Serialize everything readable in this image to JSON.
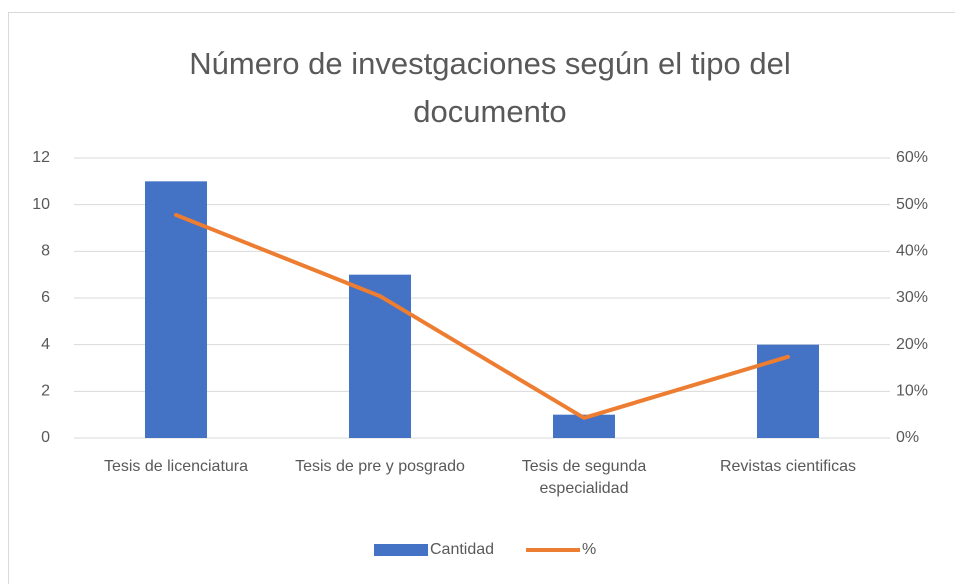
{
  "chart_data": {
    "type": "bar",
    "title": "Número de investgaciones según el tipo del documento",
    "categories": [
      "Tesis de licenciatura",
      "Tesis de pre y posgrado",
      "Tesis de segunda especialidad",
      "Revistas cientificas"
    ],
    "series": [
      {
        "name": "Cantidad",
        "type": "bar",
        "color": "#4472c4",
        "values": [
          11,
          7,
          1,
          4
        ]
      },
      {
        "name": "%",
        "type": "line",
        "color": "#ed7d31",
        "axis": "y2",
        "values": [
          47.8,
          30.4,
          4.3,
          17.4
        ]
      }
    ],
    "ylim": [
      0,
      12
    ],
    "yticks": [
      0,
      2,
      4,
      6,
      8,
      10,
      12
    ],
    "y2lim": [
      0,
      60
    ],
    "y2ticks": [
      {
        "value": 0,
        "label": "0%"
      },
      {
        "value": 10,
        "label": "10%"
      },
      {
        "value": 20,
        "label": "20%"
      },
      {
        "value": 30,
        "label": "30%"
      },
      {
        "value": 40,
        "label": "40%"
      },
      {
        "value": 50,
        "label": "50%"
      },
      {
        "value": 60,
        "label": "60%"
      }
    ],
    "grid": true,
    "legend": "bottom"
  }
}
